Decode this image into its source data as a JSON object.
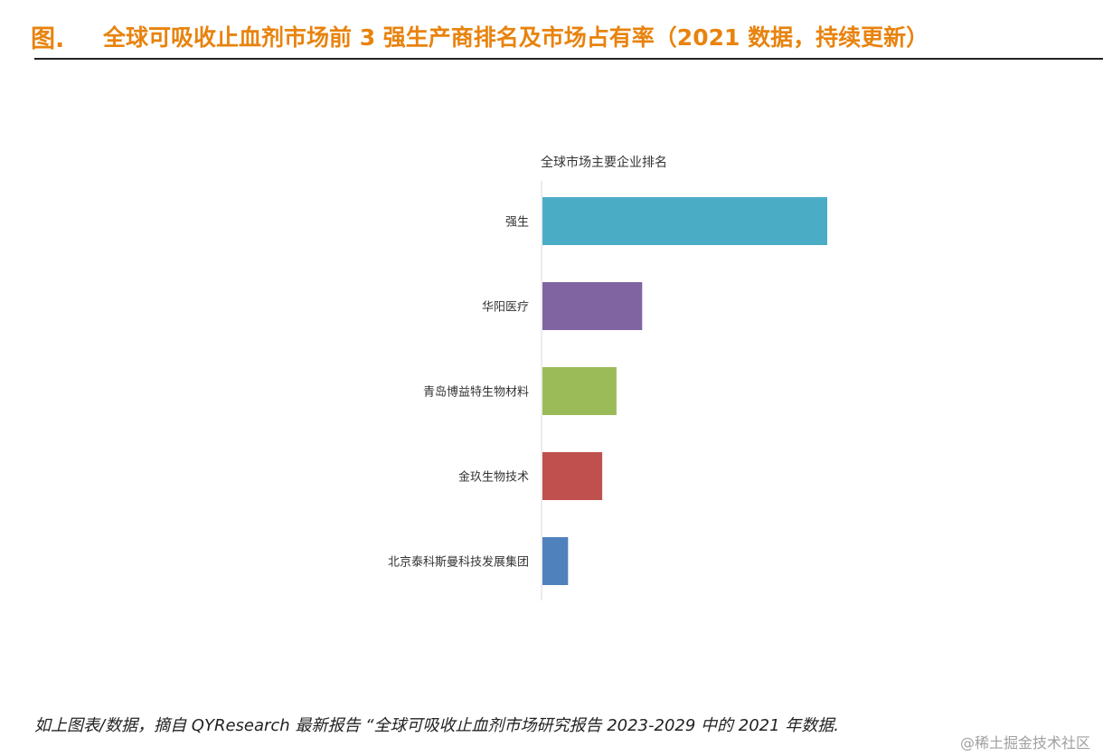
{
  "header": {
    "label": "图.",
    "title": "全球可吸收止血剂市场前 3 强生产商排名及市场占有率（2021 数据，持续更新）"
  },
  "chart_data": {
    "type": "bar",
    "orientation": "horizontal",
    "title": "全球市场主要企业排名",
    "categories": [
      "强生",
      "华阳医疗",
      "青岛博益特生物材料",
      "金玖生物技术",
      "北京泰科斯曼科技发展集团"
    ],
    "values": [
      100,
      35,
      26,
      21,
      9
    ],
    "colors": [
      "#4BACC6",
      "#8064A2",
      "#9BBB59",
      "#C0504D",
      "#4F81BD"
    ],
    "xlabel": "",
    "ylabel": "",
    "xlim": [
      0,
      100
    ],
    "grid": false,
    "legend": "none"
  },
  "footnote": "如上图表/数据，摘自 QYResearch 最新报告 “全球可吸收止血剂市场研究报告 2023-2029 中的 2021 年数据.",
  "watermark": "@稀土掘金技术社区"
}
